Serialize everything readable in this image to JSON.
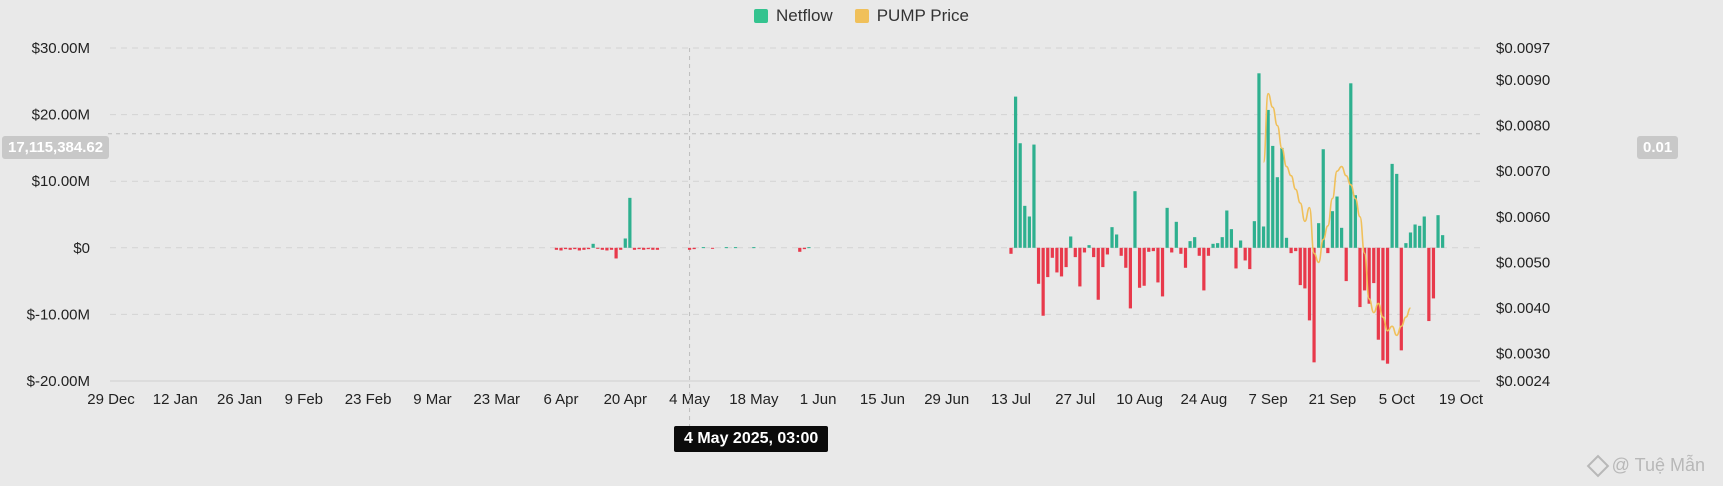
{
  "legend": {
    "netflow_label": "Netflow",
    "price_label": "PUMP Price",
    "netflow_color": "#34c38f",
    "price_color": "#f0c05a"
  },
  "crosshair": {
    "x_label": "4 May 2025, 03:00",
    "y_left_label": "17,115,384.62",
    "y_right_label": "0.01"
  },
  "watermark": {
    "text": "@ Tuệ Mẫn"
  },
  "chart_data": {
    "type": "bar",
    "colors": {
      "positive": "#2eb08f",
      "negative": "#e8394b",
      "price": "#f0c05a",
      "grid": "#d3d3d3"
    },
    "x_ticks": [
      "29 Dec",
      "12 Jan",
      "26 Jan",
      "9 Feb",
      "23 Feb",
      "9 Mar",
      "23 Mar",
      "6 Apr",
      "20 Apr",
      "4 May",
      "18 May",
      "1 Jun",
      "15 Jun",
      "29 Jun",
      "13 Jul",
      "27 Jul",
      "10 Aug",
      "24 Aug",
      "7 Sep",
      "21 Sep",
      "5 Oct",
      "19 Oct"
    ],
    "y_left_ticks": [
      {
        "value": 30000000,
        "label": "$30.00M"
      },
      {
        "value": 20000000,
        "label": "$20.00M"
      },
      {
        "value": 10000000,
        "label": "$10.00M"
      },
      {
        "value": 0,
        "label": "$0"
      },
      {
        "value": -10000000,
        "label": "$-10.00M"
      },
      {
        "value": -20000000,
        "label": "$-20.00M"
      }
    ],
    "y_right_ticks": [
      {
        "value": 0.0097,
        "label": "$0.0097"
      },
      {
        "value": 0.009,
        "label": "$0.0090"
      },
      {
        "value": 0.008,
        "label": "$0.0080"
      },
      {
        "value": 0.007,
        "label": "$0.0070"
      },
      {
        "value": 0.006,
        "label": "$0.0060"
      },
      {
        "value": 0.005,
        "label": "$0.0050"
      },
      {
        "value": 0.004,
        "label": "$0.0040"
      },
      {
        "value": 0.003,
        "label": "$0.0030"
      },
      {
        "value": 0.0024,
        "label": "$0.0024"
      }
    ],
    "ylim_left": [
      -20000000,
      30000000
    ],
    "ylim_right": [
      0.0024,
      0.0097
    ],
    "grid": true,
    "legend_position": "top-center",
    "series": [
      {
        "name": "Netflow",
        "points": [
          [
            "2025-04-05",
            -0.3
          ],
          [
            "2025-04-06",
            -0.4
          ],
          [
            "2025-04-07",
            -0.2
          ],
          [
            "2025-04-08",
            -0.3
          ],
          [
            "2025-04-09",
            -0.2
          ],
          [
            "2025-04-10",
            -0.4
          ],
          [
            "2025-04-11",
            -0.3
          ],
          [
            "2025-04-12",
            -0.2
          ],
          [
            "2025-04-13",
            0.6
          ],
          [
            "2025-04-14",
            -0.1
          ],
          [
            "2025-04-15",
            -0.3
          ],
          [
            "2025-04-16",
            -0.4
          ],
          [
            "2025-04-17",
            -0.3
          ],
          [
            "2025-04-18",
            -1.6
          ],
          [
            "2025-04-19",
            -0.3
          ],
          [
            "2025-04-20",
            1.4
          ],
          [
            "2025-04-21",
            7.5
          ],
          [
            "2025-04-22",
            -0.3
          ],
          [
            "2025-04-23",
            -0.2
          ],
          [
            "2025-04-24",
            -0.3
          ],
          [
            "2025-04-25",
            -0.2
          ],
          [
            "2025-04-26",
            -0.3
          ],
          [
            "2025-04-27",
            -0.3
          ],
          [
            "2025-05-04",
            -0.3
          ],
          [
            "2025-05-05",
            -0.2
          ],
          [
            "2025-05-07",
            0.1
          ],
          [
            "2025-05-09",
            -0.1
          ],
          [
            "2025-05-12",
            0.1
          ],
          [
            "2025-05-14",
            0.1
          ],
          [
            "2025-05-18",
            0.1
          ],
          [
            "2025-05-28",
            -0.6
          ],
          [
            "2025-05-29",
            -0.2
          ],
          [
            "2025-05-30",
            0.1
          ],
          [
            "2025-07-13",
            -0.9
          ],
          [
            "2025-07-14",
            22.7
          ],
          [
            "2025-07-15",
            15.7
          ],
          [
            "2025-07-16",
            6.3
          ],
          [
            "2025-07-17",
            4.7
          ],
          [
            "2025-07-18",
            15.5
          ],
          [
            "2025-07-19",
            -5.4
          ],
          [
            "2025-07-20",
            -10.2
          ],
          [
            "2025-07-21",
            -4.4
          ],
          [
            "2025-07-22",
            -1.5
          ],
          [
            "2025-07-23",
            -3.7
          ],
          [
            "2025-07-24",
            -4.3
          ],
          [
            "2025-07-25",
            -2.9
          ],
          [
            "2025-07-26",
            1.7
          ],
          [
            "2025-07-27",
            -1.4
          ],
          [
            "2025-07-28",
            -5.8
          ],
          [
            "2025-07-29",
            -0.7
          ],
          [
            "2025-07-30",
            0.4
          ],
          [
            "2025-07-31",
            -1.4
          ],
          [
            "2025-08-01",
            -7.8
          ],
          [
            "2025-08-02",
            -2.9
          ],
          [
            "2025-08-03",
            -1.0
          ],
          [
            "2025-08-04",
            3.1
          ],
          [
            "2025-08-05",
            2.0
          ],
          [
            "2025-08-06",
            -1.2
          ],
          [
            "2025-08-07",
            -3.0
          ],
          [
            "2025-08-08",
            -9.1
          ],
          [
            "2025-08-09",
            8.5
          ],
          [
            "2025-08-10",
            -6.0
          ],
          [
            "2025-08-11",
            -5.7
          ],
          [
            "2025-08-12",
            -0.6
          ],
          [
            "2025-08-13",
            -0.5
          ],
          [
            "2025-08-14",
            -5.2
          ],
          [
            "2025-08-15",
            -7.3
          ],
          [
            "2025-08-16",
            6.0
          ],
          [
            "2025-08-17",
            -0.7
          ],
          [
            "2025-08-18",
            3.9
          ],
          [
            "2025-08-19",
            -0.9
          ],
          [
            "2025-08-20",
            -3.0
          ],
          [
            "2025-08-21",
            1.0
          ],
          [
            "2025-08-22",
            1.6
          ],
          [
            "2025-08-23",
            -1.2
          ],
          [
            "2025-08-24",
            -6.4
          ],
          [
            "2025-08-25",
            -1.2
          ],
          [
            "2025-08-26",
            0.6
          ],
          [
            "2025-08-27",
            0.7
          ],
          [
            "2025-08-28",
            1.6
          ],
          [
            "2025-08-29",
            5.6
          ],
          [
            "2025-08-30",
            2.8
          ],
          [
            "2025-08-31",
            -3.1
          ],
          [
            "2025-09-01",
            1.1
          ],
          [
            "2025-09-02",
            -1.9
          ],
          [
            "2025-09-03",
            -3.2
          ],
          [
            "2025-09-04",
            4.0
          ],
          [
            "2025-09-05",
            26.2
          ],
          [
            "2025-09-06",
            3.2
          ],
          [
            "2025-09-07",
            20.7
          ],
          [
            "2025-09-08",
            15.3
          ],
          [
            "2025-09-09",
            10.6
          ],
          [
            "2025-09-10",
            15.0
          ],
          [
            "2025-09-11",
            1.5
          ],
          [
            "2025-09-12",
            -0.8
          ],
          [
            "2025-09-13",
            -0.5
          ],
          [
            "2025-09-14",
            -5.6
          ],
          [
            "2025-09-15",
            -6.1
          ],
          [
            "2025-09-16",
            -10.9
          ],
          [
            "2025-09-17",
            -17.2
          ],
          [
            "2025-09-18",
            3.7
          ],
          [
            "2025-09-19",
            14.8
          ],
          [
            "2025-09-20",
            -0.8
          ],
          [
            "2025-09-21",
            5.5
          ],
          [
            "2025-09-22",
            7.7
          ],
          [
            "2025-09-23",
            3.0
          ],
          [
            "2025-09-24",
            -5.0
          ],
          [
            "2025-09-25",
            24.7
          ],
          [
            "2025-09-26",
            7.9
          ],
          [
            "2025-09-27",
            -8.9
          ],
          [
            "2025-09-28",
            -6.4
          ],
          [
            "2025-09-29",
            -8.4
          ],
          [
            "2025-09-30",
            -5.3
          ],
          [
            "2025-10-01",
            -13.8
          ],
          [
            "2025-10-02",
            -16.9
          ],
          [
            "2025-10-03",
            -17.4
          ],
          [
            "2025-10-04",
            12.6
          ],
          [
            "2025-10-05",
            11.1
          ],
          [
            "2025-10-06",
            -15.4
          ],
          [
            "2025-10-07",
            0.7
          ],
          [
            "2025-10-08",
            2.3
          ],
          [
            "2025-10-09",
            3.5
          ],
          [
            "2025-10-10",
            3.3
          ],
          [
            "2025-10-11",
            4.7
          ],
          [
            "2025-10-12",
            -11.0
          ],
          [
            "2025-10-13",
            -7.6
          ],
          [
            "2025-10-14",
            4.9
          ],
          [
            "2025-10-15",
            1.9
          ]
        ],
        "unit": "USD millions"
      },
      {
        "name": "PUMP Price",
        "points": [
          [
            "2025-09-06",
            0.0072
          ],
          [
            "2025-09-07",
            0.0087
          ],
          [
            "2025-09-08",
            0.0084
          ],
          [
            "2025-09-09",
            0.008
          ],
          [
            "2025-09-10",
            0.0075
          ],
          [
            "2025-09-11",
            0.0071
          ],
          [
            "2025-09-12",
            0.0069
          ],
          [
            "2025-09-13",
            0.0066
          ],
          [
            "2025-09-14",
            0.0063
          ],
          [
            "2025-09-15",
            0.0059
          ],
          [
            "2025-09-16",
            0.0062
          ],
          [
            "2025-09-17",
            0.0052
          ],
          [
            "2025-09-18",
            0.005
          ],
          [
            "2025-09-19",
            0.0055
          ],
          [
            "2025-09-20",
            0.0058
          ],
          [
            "2025-09-21",
            0.0064
          ],
          [
            "2025-09-22",
            0.007
          ],
          [
            "2025-09-23",
            0.0071
          ],
          [
            "2025-09-24",
            0.0069
          ],
          [
            "2025-09-25",
            0.0067
          ],
          [
            "2025-09-26",
            0.0064
          ],
          [
            "2025-09-27",
            0.006
          ],
          [
            "2025-09-28",
            0.0052
          ],
          [
            "2025-09-29",
            0.0042
          ],
          [
            "2025-09-30",
            0.0039
          ],
          [
            "2025-10-01",
            0.0041
          ],
          [
            "2025-10-02",
            0.0038
          ],
          [
            "2025-10-03",
            0.0035
          ],
          [
            "2025-10-04",
            0.0036
          ],
          [
            "2025-10-05",
            0.0034
          ],
          [
            "2025-10-06",
            0.0036
          ],
          [
            "2025-10-07",
            0.0038
          ],
          [
            "2025-10-08",
            0.004
          ]
        ],
        "unit": "USD"
      }
    ]
  }
}
